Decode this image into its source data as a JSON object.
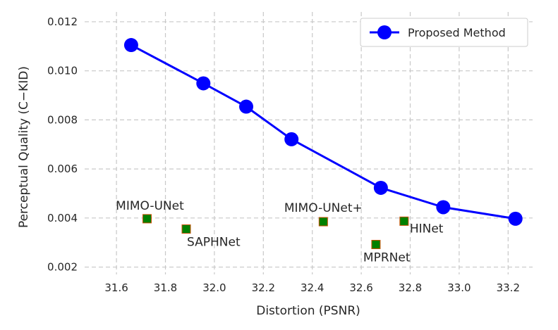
{
  "chart_data": {
    "type": "scatter",
    "xlabel": "Distortion (PSNR)",
    "ylabel": "Perceptual Quality (C−KID)",
    "xlim": [
      31.47,
      33.3
    ],
    "ylim": [
      0.0017,
      0.0124
    ],
    "x_ticks": [
      "31.6",
      "31.8",
      "32.0",
      "32.2",
      "32.4",
      "32.6",
      "32.8",
      "33.0",
      "33.2"
    ],
    "y_ticks": [
      "0.002",
      "0.004",
      "0.006",
      "0.008",
      "0.010",
      "0.012"
    ],
    "grid": true,
    "legend_position": "top-right",
    "series": [
      {
        "name": "Proposed Method",
        "kind": "line-markers",
        "color": "#0000ff",
        "points": [
          [
            31.66,
            0.01105
          ],
          [
            31.955,
            0.00949
          ],
          [
            32.13,
            0.00854
          ],
          [
            32.315,
            0.00721
          ],
          [
            32.68,
            0.00523
          ],
          [
            32.935,
            0.00444
          ],
          [
            33.23,
            0.00397
          ]
        ]
      }
    ],
    "baselines": {
      "marker_color": "#008000",
      "marker_edge": "#c85000",
      "points": [
        {
          "label": "MIMO-UNet",
          "x": 31.725,
          "y": 0.00397
        },
        {
          "label": "SAPHNet",
          "x": 31.885,
          "y": 0.00355
        },
        {
          "label": "MIMO-UNet+",
          "x": 32.445,
          "y": 0.00385
        },
        {
          "label": "MPRNet",
          "x": 32.66,
          "y": 0.00292
        },
        {
          "label": "HINet",
          "x": 32.775,
          "y": 0.00387
        }
      ]
    }
  }
}
